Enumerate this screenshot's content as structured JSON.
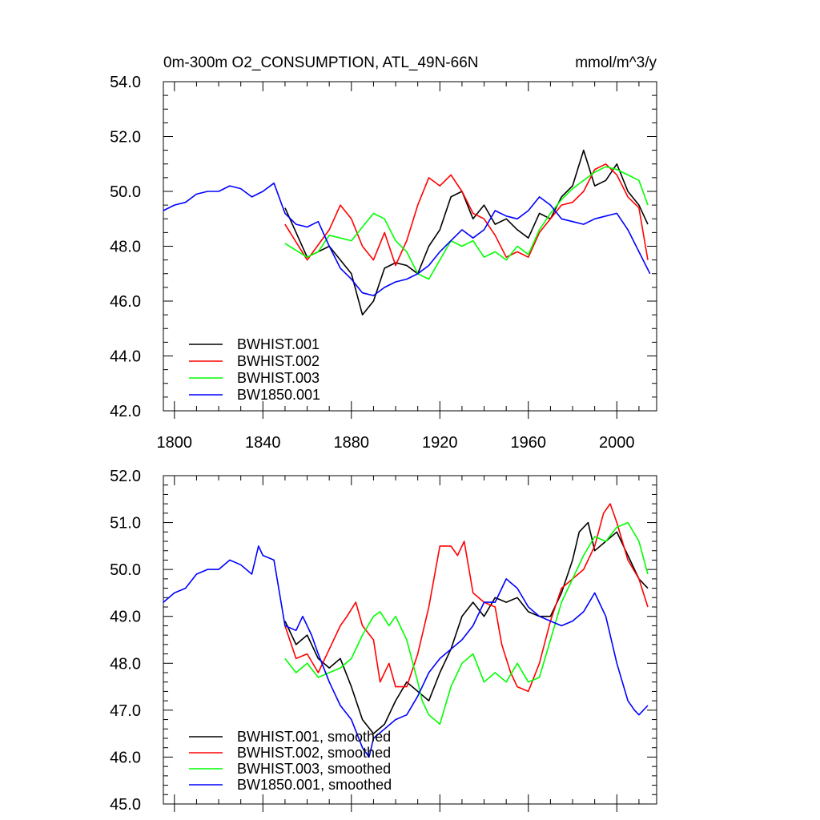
{
  "chart_data": [
    {
      "type": "line",
      "title_left": "0m-300m O2_CONSUMPTION, ATL_49N-66N",
      "title_right": "mmol/m^3/y",
      "xlabel": "",
      "ylabel": "",
      "xlim": [
        1795,
        2018
      ],
      "ylim": [
        42.0,
        54.0
      ],
      "xticks": [
        "1800",
        "1840",
        "1880",
        "1920",
        "1960",
        "2000"
      ],
      "yticks": [
        "42.0",
        "44.0",
        "46.0",
        "48.0",
        "50.0",
        "52.0",
        "54.0"
      ],
      "legend_position": "bottom-left",
      "grid": false,
      "series": [
        {
          "name": "BWHIST.001",
          "color": "#000000",
          "x": [
            1850,
            1860,
            1870,
            1880,
            1885,
            1890,
            1895,
            1900,
            1905,
            1910,
            1915,
            1920,
            1925,
            1930,
            1935,
            1940,
            1945,
            1950,
            1955,
            1960,
            1965,
            1970,
            1975,
            1980,
            1985,
            1990,
            1995,
            2000,
            2005,
            2010,
            2014
          ],
          "y": [
            49.4,
            47.6,
            48.0,
            47.0,
            45.5,
            46.0,
            47.2,
            47.4,
            47.3,
            47.0,
            48.0,
            48.6,
            49.8,
            50.0,
            49.0,
            49.5,
            48.8,
            49.0,
            48.6,
            48.3,
            49.2,
            49.0,
            49.8,
            50.2,
            51.5,
            50.2,
            50.4,
            51.0,
            50.0,
            49.5,
            48.8
          ]
        },
        {
          "name": "BWHIST.002",
          "color": "#ff0000",
          "x": [
            1850,
            1860,
            1870,
            1875,
            1880,
            1885,
            1890,
            1895,
            1900,
            1905,
            1910,
            1915,
            1920,
            1925,
            1930,
            1935,
            1940,
            1945,
            1950,
            1955,
            1960,
            1965,
            1970,
            1975,
            1980,
            1985,
            1990,
            1995,
            2000,
            2005,
            2010,
            2014
          ],
          "y": [
            48.8,
            47.5,
            48.6,
            49.5,
            49.0,
            48.0,
            47.5,
            48.5,
            47.3,
            48.2,
            49.5,
            50.5,
            50.2,
            50.6,
            50.0,
            49.2,
            49.0,
            48.4,
            47.6,
            47.8,
            47.6,
            48.5,
            49.0,
            49.5,
            49.6,
            50.0,
            50.8,
            51.0,
            50.6,
            49.8,
            49.4,
            47.5
          ]
        },
        {
          "name": "BWHIST.003",
          "color": "#00ff00",
          "x": [
            1850,
            1860,
            1865,
            1870,
            1880,
            1885,
            1890,
            1895,
            1900,
            1905,
            1910,
            1915,
            1920,
            1925,
            1930,
            1935,
            1940,
            1945,
            1950,
            1955,
            1960,
            1965,
            1970,
            1975,
            1980,
            1985,
            1990,
            1995,
            2000,
            2005,
            2010,
            2014
          ],
          "y": [
            48.1,
            47.6,
            47.8,
            48.4,
            48.2,
            48.7,
            49.2,
            49.0,
            48.2,
            47.8,
            47.0,
            46.8,
            47.5,
            48.2,
            48.0,
            48.2,
            47.6,
            47.8,
            47.5,
            48.0,
            47.7,
            48.6,
            49.2,
            49.7,
            50.1,
            50.4,
            50.7,
            50.9,
            50.8,
            50.6,
            50.4,
            49.5
          ]
        },
        {
          "name": "BW1850.001",
          "color": "#0000ff",
          "x": [
            1795,
            1800,
            1805,
            1810,
            1815,
            1820,
            1825,
            1830,
            1835,
            1840,
            1845,
            1850,
            1855,
            1860,
            1865,
            1870,
            1875,
            1880,
            1885,
            1890,
            1895,
            1900,
            1905,
            1910,
            1915,
            1920,
            1925,
            1930,
            1935,
            1940,
            1945,
            1950,
            1955,
            1960,
            1965,
            1970,
            1975,
            1980,
            1985,
            1990,
            1995,
            2000,
            2005,
            2010,
            2015
          ],
          "y": [
            49.3,
            49.5,
            49.6,
            49.9,
            50.0,
            50.0,
            50.2,
            50.1,
            49.8,
            50.0,
            50.3,
            49.2,
            48.8,
            48.7,
            48.9,
            48.0,
            47.2,
            46.8,
            46.3,
            46.2,
            46.5,
            46.7,
            46.8,
            47.0,
            47.3,
            47.8,
            48.2,
            48.6,
            48.3,
            48.6,
            49.3,
            49.1,
            49.0,
            49.3,
            49.8,
            49.5,
            49.0,
            48.9,
            48.8,
            49.0,
            49.1,
            49.2,
            48.6,
            47.8,
            47.0
          ]
        }
      ]
    },
    {
      "type": "line",
      "xlabel": "",
      "ylabel": "",
      "xlim": [
        1795,
        2018
      ],
      "ylim": [
        45.0,
        52.0
      ],
      "yticks": [
        "45.0",
        "46.0",
        "47.0",
        "48.0",
        "49.0",
        "50.0",
        "51.0",
        "52.0"
      ],
      "legend_position": "bottom-left",
      "grid": false,
      "series": [
        {
          "name": "BWHIST.001, smoothed",
          "color": "#000000",
          "x": [
            1850,
            1855,
            1860,
            1865,
            1870,
            1875,
            1880,
            1885,
            1890,
            1895,
            1900,
            1905,
            1910,
            1915,
            1920,
            1925,
            1930,
            1935,
            1940,
            1945,
            1950,
            1955,
            1960,
            1965,
            1970,
            1975,
            1980,
            1983,
            1987,
            1990,
            1995,
            2000,
            2005,
            2010,
            2014
          ],
          "y": [
            48.9,
            48.4,
            48.6,
            48.1,
            47.9,
            48.1,
            47.5,
            46.8,
            46.5,
            46.7,
            47.2,
            47.6,
            47.4,
            47.2,
            47.8,
            48.3,
            49.0,
            49.3,
            49.0,
            49.4,
            49.3,
            49.4,
            49.1,
            49.0,
            49.0,
            49.5,
            50.2,
            50.8,
            51.0,
            50.4,
            50.6,
            50.8,
            50.3,
            49.8,
            49.6
          ]
        },
        {
          "name": "BWHIST.002, smoothed",
          "color": "#ff0000",
          "x": [
            1850,
            1855,
            1860,
            1865,
            1870,
            1875,
            1878,
            1882,
            1885,
            1890,
            1893,
            1897,
            1900,
            1905,
            1910,
            1915,
            1920,
            1925,
            1928,
            1931,
            1935,
            1940,
            1945,
            1948,
            1952,
            1955,
            1960,
            1965,
            1970,
            1975,
            1980,
            1985,
            1990,
            1994,
            1997,
            2000,
            2005,
            2010,
            2014
          ],
          "y": [
            48.8,
            48.1,
            48.2,
            47.8,
            48.3,
            48.8,
            49.0,
            49.3,
            48.8,
            48.5,
            47.6,
            48.0,
            47.5,
            47.5,
            48.2,
            49.2,
            50.5,
            50.5,
            50.3,
            50.6,
            49.5,
            49.3,
            49.2,
            48.4,
            47.8,
            47.5,
            47.4,
            48.0,
            48.9,
            49.6,
            49.8,
            50.0,
            50.5,
            51.2,
            51.4,
            51.0,
            50.2,
            49.8,
            49.2
          ]
        },
        {
          "name": "BWHIST.003, smoothed",
          "color": "#00ff00",
          "x": [
            1850,
            1855,
            1860,
            1865,
            1870,
            1875,
            1880,
            1885,
            1890,
            1893,
            1897,
            1900,
            1905,
            1910,
            1912,
            1915,
            1920,
            1925,
            1930,
            1935,
            1940,
            1945,
            1950,
            1955,
            1960,
            1965,
            1970,
            1975,
            1980,
            1985,
            1990,
            1995,
            2000,
            2005,
            2010,
            2014
          ],
          "y": [
            48.1,
            47.8,
            48.0,
            47.7,
            47.8,
            47.9,
            48.1,
            48.6,
            49.0,
            49.1,
            48.8,
            49.0,
            48.5,
            47.6,
            47.2,
            46.9,
            46.7,
            47.5,
            48.0,
            48.2,
            47.6,
            47.8,
            47.6,
            48.0,
            47.6,
            47.7,
            48.5,
            49.3,
            49.8,
            50.3,
            50.7,
            50.6,
            50.9,
            51.0,
            50.6,
            49.9
          ]
        },
        {
          "name": "BW1850.001, smoothed",
          "color": "#0000ff",
          "x": [
            1795,
            1800,
            1805,
            1810,
            1815,
            1820,
            1825,
            1830,
            1835,
            1838,
            1840,
            1845,
            1850,
            1855,
            1858,
            1862,
            1865,
            1870,
            1875,
            1880,
            1885,
            1888,
            1890,
            1895,
            1900,
            1905,
            1910,
            1915,
            1920,
            1925,
            1930,
            1935,
            1940,
            1945,
            1950,
            1955,
            1960,
            1965,
            1970,
            1975,
            1980,
            1985,
            1990,
            1995,
            2000,
            2005,
            2008,
            2010,
            2014
          ],
          "y": [
            49.3,
            49.5,
            49.6,
            49.9,
            50.0,
            50.0,
            50.2,
            50.1,
            49.9,
            50.5,
            50.3,
            50.2,
            48.8,
            48.7,
            49.0,
            48.6,
            48.2,
            47.6,
            47.1,
            46.8,
            46.2,
            46.0,
            46.4,
            46.6,
            46.8,
            46.9,
            47.3,
            47.8,
            48.1,
            48.3,
            48.5,
            48.8,
            49.3,
            49.3,
            49.8,
            49.6,
            49.2,
            49.0,
            48.9,
            48.8,
            48.9,
            49.1,
            49.5,
            49.0,
            48.0,
            47.2,
            47.0,
            46.9,
            47.1
          ]
        }
      ]
    }
  ]
}
